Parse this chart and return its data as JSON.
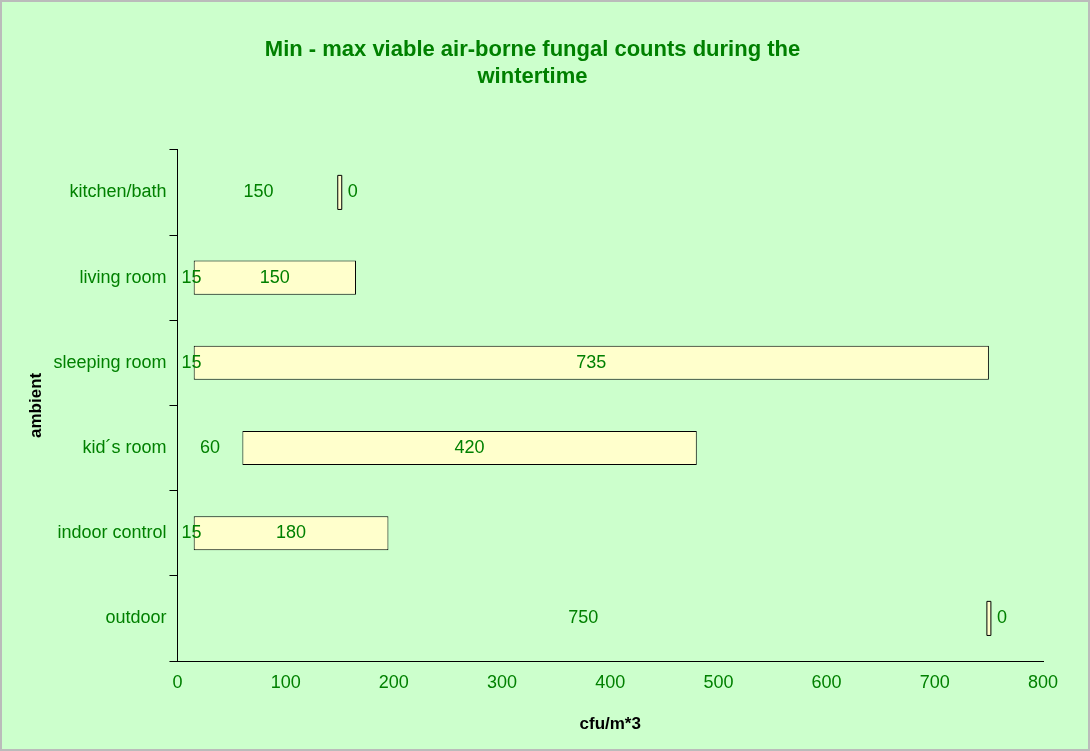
{
  "chart_data": {
    "type": "bar",
    "orientation": "horizontal",
    "title": "Min - max viable air-borne fungal counts during the wintertime",
    "xlabel": "cfu/m*3",
    "ylabel": "ambient",
    "categories": [
      "kitchen/bath",
      "living room",
      "sleeping room",
      "kid´s room",
      "indoor control",
      "outdoor"
    ],
    "base": [
      150,
      15,
      15,
      60,
      15,
      750
    ],
    "values": [
      0,
      150,
      735,
      420,
      180,
      0
    ],
    "color": "#ffffcc",
    "data_labels": true,
    "annotations": [
      "150",
      "15",
      "15",
      "60",
      "15",
      "750"
    ],
    "xlim": [
      0,
      800
    ],
    "xticks": [
      0,
      100,
      200,
      300,
      400,
      500,
      600,
      700,
      800
    ],
    "grid": false,
    "legend": false
  }
}
